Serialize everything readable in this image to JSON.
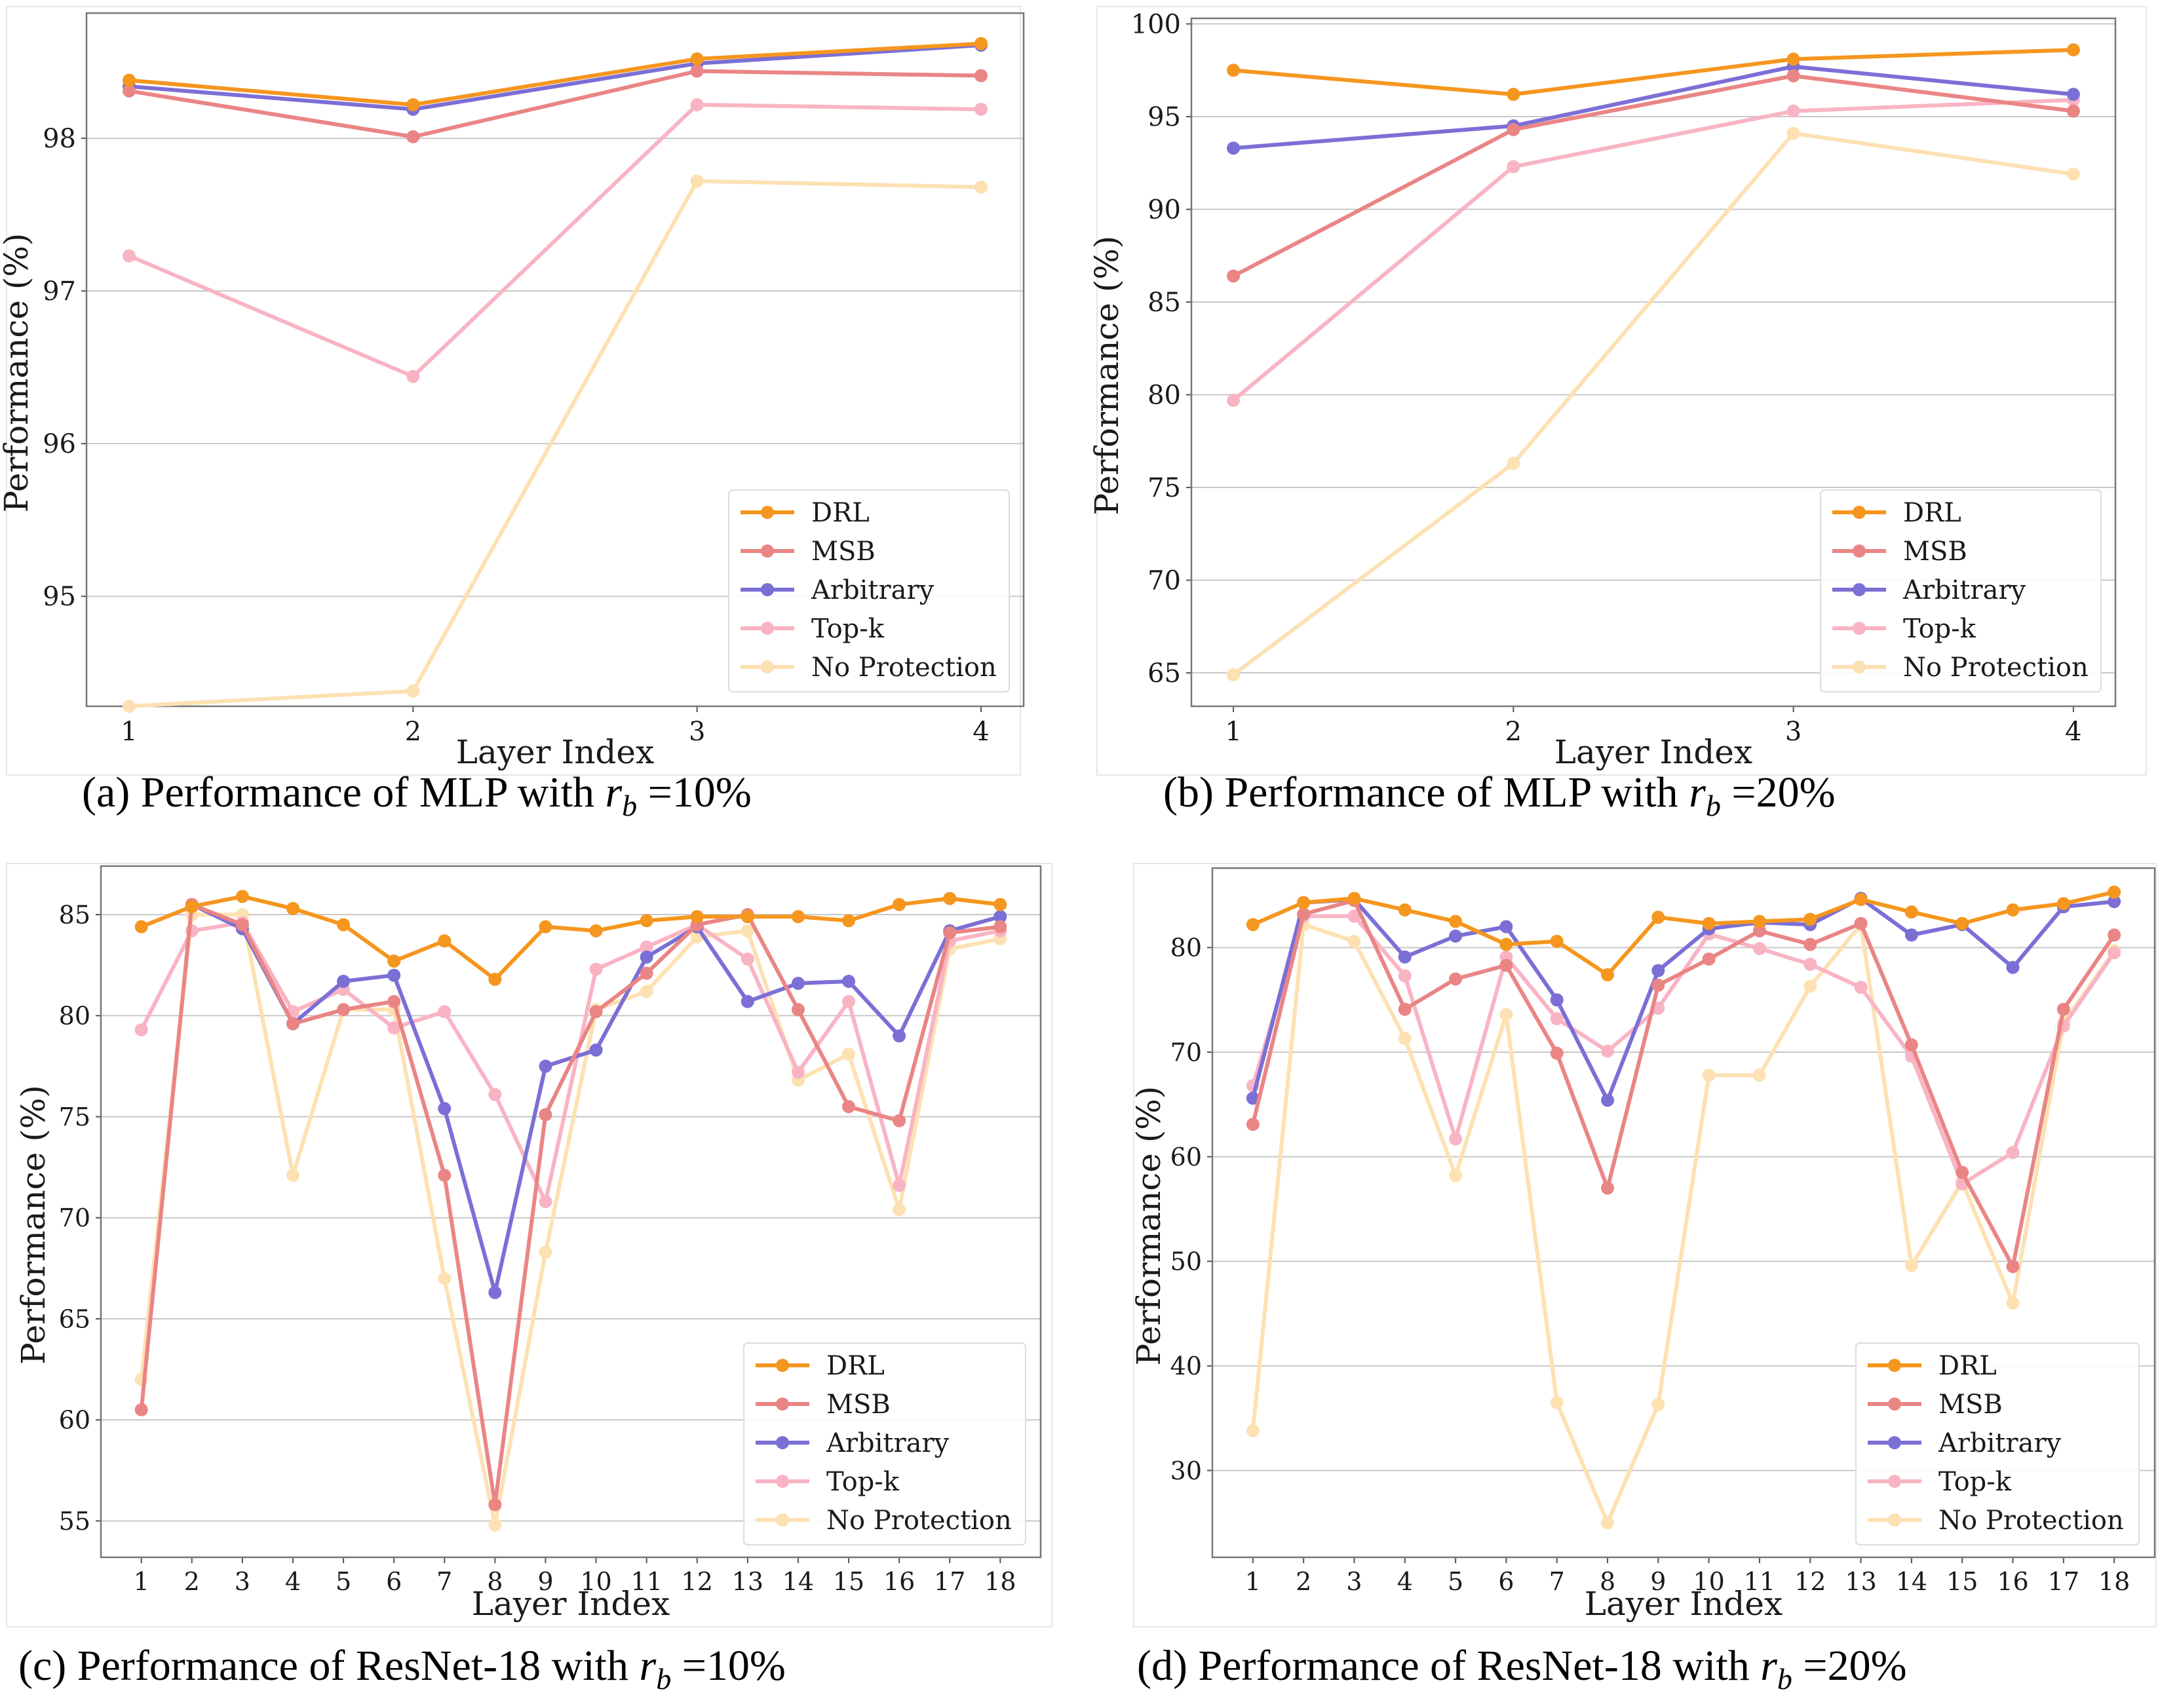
{
  "colors": {
    "DRL": "#f5961e",
    "MSB": "#ea8585",
    "Arbitrary": "#7b6fd6",
    "Top-k": "#f9b4c4",
    "No Protection": "#fde1b2"
  },
  "chart_data": [
    {
      "type": "line",
      "panel": "a",
      "caption": {
        "prefix": "(a) Performance of MLP with ",
        "var": "r",
        "sub": "b",
        "suffix": " =10%"
      },
      "xlabel": "Layer Index",
      "ylabel": "Performance (%)",
      "x": [
        1,
        2,
        3,
        4
      ],
      "xlim": [
        0.85,
        4.15
      ],
      "ylim": [
        94.28,
        98.82
      ],
      "yticks": [
        95,
        96,
        97,
        98
      ],
      "grid": true,
      "legend": "lower-right",
      "series": [
        {
          "name": "DRL",
          "values": [
            98.38,
            98.22,
            98.52,
            98.62
          ]
        },
        {
          "name": "MSB",
          "values": [
            98.31,
            98.01,
            98.44,
            98.41
          ]
        },
        {
          "name": "Arbitrary",
          "values": [
            98.34,
            98.19,
            98.49,
            98.61
          ]
        },
        {
          "name": "Top-k",
          "values": [
            97.23,
            96.44,
            98.22,
            98.19
          ]
        },
        {
          "name": "No Protection",
          "values": [
            94.28,
            94.38,
            97.72,
            97.68
          ]
        }
      ]
    },
    {
      "type": "line",
      "panel": "b",
      "caption": {
        "prefix": "(b) Performance of MLP with ",
        "var": "r",
        "sub": "b",
        "suffix": " =20%"
      },
      "xlabel": "Layer Index",
      "ylabel": "Performance (%)",
      "x": [
        1,
        2,
        3,
        4
      ],
      "xlim": [
        0.85,
        4.15
      ],
      "ylim": [
        63.2,
        100.3
      ],
      "yticks": [
        65,
        70,
        75,
        80,
        85,
        90,
        95,
        100
      ],
      "grid": true,
      "legend": "lower-right",
      "series": [
        {
          "name": "DRL",
          "values": [
            97.5,
            96.2,
            98.1,
            98.6
          ]
        },
        {
          "name": "MSB",
          "values": [
            86.4,
            94.3,
            97.2,
            95.3
          ]
        },
        {
          "name": "Arbitrary",
          "values": [
            93.3,
            94.5,
            97.7,
            96.2
          ]
        },
        {
          "name": "Top-k",
          "values": [
            79.7,
            92.3,
            95.3,
            95.9
          ]
        },
        {
          "name": "No Protection",
          "values": [
            64.9,
            76.3,
            94.1,
            91.9
          ]
        }
      ]
    },
    {
      "type": "line",
      "panel": "c",
      "caption": {
        "prefix": "(c) Performance of ResNet-18 with ",
        "var": "r",
        "sub": "b",
        "suffix": " =10%"
      },
      "xlabel": "Layer Index",
      "ylabel": "Performance (%)",
      "x": [
        1,
        2,
        3,
        4,
        5,
        6,
        7,
        8,
        9,
        10,
        11,
        12,
        13,
        14,
        15,
        16,
        17,
        18
      ],
      "xlim": [
        0.2,
        18.8
      ],
      "ylim": [
        53.2,
        87.4
      ],
      "yticks": [
        55,
        60,
        65,
        70,
        75,
        80,
        85
      ],
      "grid": true,
      "legend": "lower-right",
      "series": [
        {
          "name": "DRL",
          "values": [
            84.4,
            85.4,
            85.9,
            85.3,
            84.5,
            82.7,
            83.7,
            81.8,
            84.4,
            84.2,
            84.7,
            84.9,
            84.9,
            84.9,
            84.7,
            85.5,
            85.8,
            85.5
          ]
        },
        {
          "name": "MSB",
          "values": [
            60.5,
            85.5,
            84.5,
            79.6,
            80.3,
            80.7,
            72.1,
            55.8,
            75.1,
            80.2,
            82.1,
            84.5,
            85.0,
            80.3,
            75.5,
            74.8,
            84.1,
            84.4
          ]
        },
        {
          "name": "Arbitrary",
          "values": [
            null,
            85.5,
            84.3,
            79.6,
            81.7,
            82.0,
            75.4,
            66.3,
            77.5,
            78.3,
            82.9,
            84.4,
            80.7,
            81.6,
            81.7,
            79.0,
            84.2,
            84.9
          ]
        },
        {
          "name": "Top-k",
          "values": [
            79.3,
            84.2,
            84.6,
            80.2,
            81.3,
            79.4,
            80.2,
            76.1,
            70.8,
            82.3,
            83.4,
            84.5,
            82.8,
            77.2,
            80.7,
            71.6,
            83.7,
            84.2
          ]
        },
        {
          "name": "No Protection",
          "values": [
            62.0,
            85.0,
            85.0,
            72.1,
            80.3,
            80.3,
            67.0,
            54.8,
            68.3,
            80.3,
            81.2,
            83.9,
            84.2,
            76.8,
            78.1,
            70.4,
            83.3,
            83.8
          ]
        }
      ]
    },
    {
      "type": "line",
      "panel": "d",
      "caption": {
        "prefix": "(d) Performance of ResNet-18 with ",
        "var": "r",
        "sub": "b",
        "suffix": " =20%"
      },
      "xlabel": "Layer Index",
      "ylabel": "Performance (%)",
      "x": [
        1,
        2,
        3,
        4,
        5,
        6,
        7,
        8,
        9,
        10,
        11,
        12,
        13,
        14,
        15,
        16,
        17,
        18
      ],
      "xlim": [
        0.2,
        18.8
      ],
      "ylim": [
        21.7,
        87.6
      ],
      "yticks": [
        30,
        40,
        50,
        60,
        70,
        80
      ],
      "grid": true,
      "legend": "lower-right",
      "series": [
        {
          "name": "DRL",
          "values": [
            82.2,
            84.3,
            84.7,
            83.6,
            82.5,
            80.3,
            80.6,
            77.4,
            82.9,
            82.3,
            82.5,
            82.7,
            84.6,
            83.4,
            82.3,
            83.6,
            84.2,
            85.3
          ]
        },
        {
          "name": "MSB",
          "values": [
            63.1,
            83.2,
            84.5,
            74.1,
            77.0,
            78.3,
            69.9,
            57.0,
            76.4,
            78.9,
            81.6,
            80.3,
            82.3,
            70.7,
            58.5,
            49.5,
            74.1,
            81.2
          ]
        },
        {
          "name": "Arbitrary",
          "values": [
            65.6,
            84.3,
            84.6,
            79.1,
            81.1,
            82.0,
            75.0,
            65.4,
            77.8,
            81.8,
            82.4,
            82.2,
            84.7,
            81.2,
            82.2,
            78.1,
            83.9,
            84.4
          ]
        },
        {
          "name": "Top-k",
          "values": [
            66.8,
            83.0,
            83.0,
            77.3,
            61.7,
            79.1,
            73.2,
            70.1,
            74.2,
            81.3,
            79.9,
            78.4,
            76.2,
            69.6,
            57.4,
            60.4,
            72.5,
            79.5
          ]
        },
        {
          "name": "No Protection",
          "values": [
            33.8,
            82.2,
            80.6,
            71.3,
            58.2,
            73.6,
            36.5,
            25.0,
            36.3,
            67.8,
            67.8,
            76.3,
            82.2,
            49.6,
            57.6,
            46.0,
            72.8,
            79.7
          ]
        }
      ]
    }
  ]
}
